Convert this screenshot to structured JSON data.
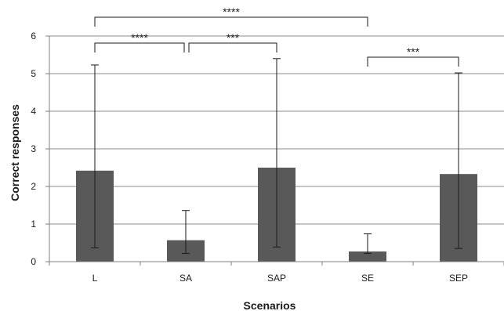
{
  "chart_data": {
    "type": "bar",
    "title": "",
    "xlabel": "Scenarios",
    "ylabel": "Correct responses",
    "ylim": [
      0,
      6
    ],
    "yticks": [
      "0",
      "1",
      "2",
      "3",
      "4",
      "5",
      "6"
    ],
    "grid": true,
    "legend": "none",
    "categories": [
      "L",
      "SA",
      "SAP",
      "SE",
      "SEP"
    ],
    "series": [
      {
        "values": [
          2.42,
          0.57,
          2.5,
          0.27,
          2.33
        ],
        "error_low": [
          0.37,
          0.22,
          0.39,
          0.22,
          0.35
        ],
        "error_high": [
          5.23,
          1.36,
          5.4,
          0.74,
          5.02
        ]
      }
    ],
    "significance": [
      {
        "from": "L",
        "to": "SE",
        "label": "****"
      },
      {
        "from": "L",
        "to": "SA",
        "label": "****"
      },
      {
        "from": "SA",
        "to": "SAP",
        "label": "***"
      },
      {
        "from": "SE",
        "to": "SEP",
        "label": "***"
      }
    ],
    "colors": {
      "bar": "#595959",
      "grid": "#8c8c8c",
      "axis": "#808080",
      "text": "#1a1a1a"
    }
  }
}
